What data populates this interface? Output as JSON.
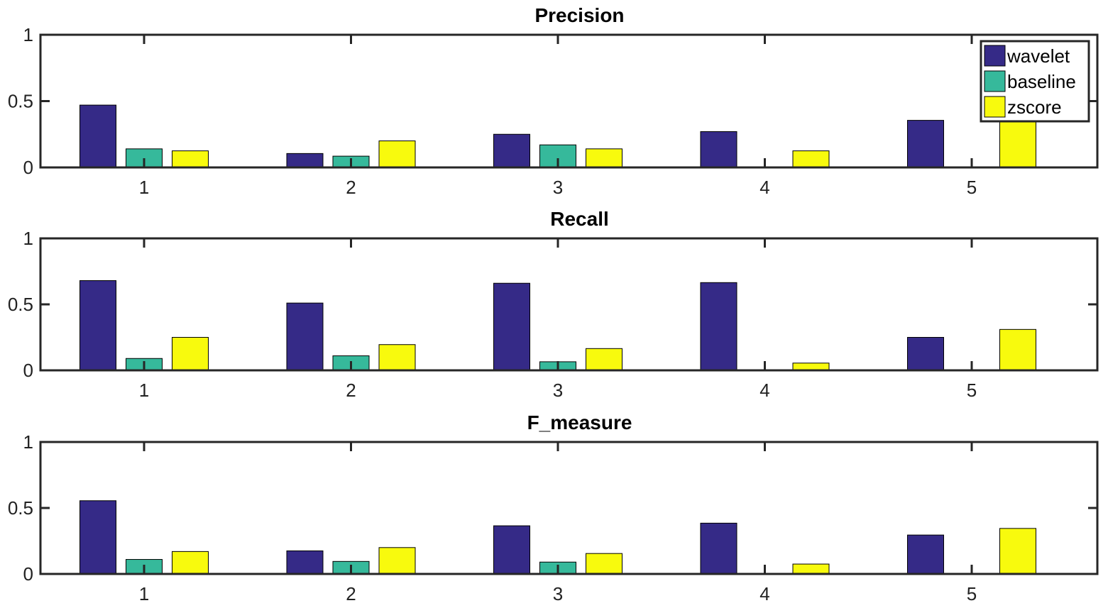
{
  "chart_data": [
    {
      "type": "bar",
      "title": "Precision",
      "categories": [
        "1",
        "2",
        "3",
        "4",
        "5"
      ],
      "series": [
        {
          "name": "wavelet",
          "values": [
            0.47,
            0.105,
            0.25,
            0.27,
            0.355
          ]
        },
        {
          "name": "baseline",
          "values": [
            0.14,
            0.085,
            0.17,
            0.0,
            0.0
          ]
        },
        {
          "name": "zscore",
          "values": [
            0.125,
            0.2,
            0.14,
            0.125,
            0.4
          ]
        }
      ],
      "ylim": [
        0,
        1
      ],
      "yticks": [
        "0",
        "0.5",
        "1"
      ],
      "legend": "top-right",
      "grid": false
    },
    {
      "type": "bar",
      "title": "Recall",
      "categories": [
        "1",
        "2",
        "3",
        "4",
        "5"
      ],
      "series": [
        {
          "name": "wavelet",
          "values": [
            0.68,
            0.51,
            0.66,
            0.665,
            0.25
          ]
        },
        {
          "name": "baseline",
          "values": [
            0.09,
            0.11,
            0.065,
            0.0,
            0.0
          ]
        },
        {
          "name": "zscore",
          "values": [
            0.25,
            0.195,
            0.165,
            0.055,
            0.31
          ]
        }
      ],
      "ylim": [
        0,
        1
      ],
      "yticks": [
        "0",
        "0.5",
        "1"
      ],
      "grid": false
    },
    {
      "type": "bar",
      "title": "F_measure",
      "categories": [
        "1",
        "2",
        "3",
        "4",
        "5"
      ],
      "series": [
        {
          "name": "wavelet",
          "values": [
            0.555,
            0.175,
            0.365,
            0.385,
            0.295
          ]
        },
        {
          "name": "baseline",
          "values": [
            0.11,
            0.095,
            0.09,
            0.0,
            0.0
          ]
        },
        {
          "name": "zscore",
          "values": [
            0.17,
            0.2,
            0.155,
            0.075,
            0.345
          ]
        }
      ],
      "ylim": [
        0,
        1
      ],
      "yticks": [
        "0",
        "0.5",
        "1"
      ],
      "grid": false
    }
  ],
  "legend": {
    "entries": [
      {
        "label": "wavelet",
        "color": "#352a87"
      },
      {
        "label": "baseline",
        "color": "#36b99b"
      },
      {
        "label": "zscore",
        "color": "#f8fa0d"
      }
    ]
  }
}
